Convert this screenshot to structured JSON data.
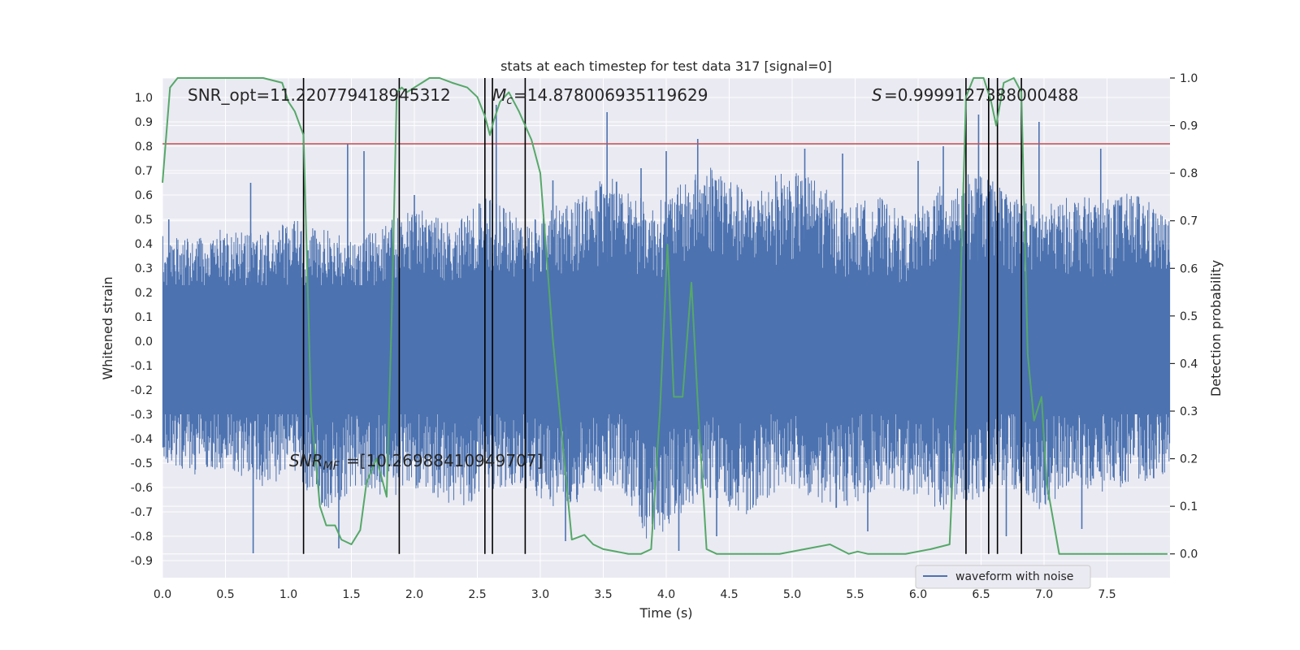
{
  "chart_data": {
    "type": "line",
    "title": "stats at each timestep for test data 317 [signal=0]",
    "xlabel": "Time (s)",
    "ylabel_left": "Whitened strain",
    "ylabel_right": "Detection probability",
    "xlim": [
      0.0,
      8.0
    ],
    "ylim_left": [
      -0.97,
      1.08
    ],
    "ylim_right": [
      -0.05,
      1.0
    ],
    "x_ticks": [
      0.0,
      0.5,
      1.0,
      1.5,
      2.0,
      2.5,
      3.0,
      3.5,
      4.0,
      4.5,
      5.0,
      5.5,
      6.0,
      6.5,
      7.0,
      7.5
    ],
    "x_tick_labels": [
      "0.0",
      "0.5",
      "1.0",
      "1.5",
      "2.0",
      "2.5",
      "3.0",
      "3.5",
      "4.0",
      "4.5",
      "5.0",
      "5.5",
      "6.0",
      "6.5",
      "7.0",
      "7.5"
    ],
    "y_left_ticks": [
      1.0,
      0.9,
      0.8,
      0.7,
      0.6,
      0.5,
      0.4,
      0.3,
      0.2,
      0.1,
      0.0,
      -0.1,
      -0.2,
      -0.3,
      -0.4,
      -0.5,
      -0.6,
      -0.7,
      -0.8,
      -0.9
    ],
    "y_left_tick_labels": [
      "1.0",
      "0.9",
      "0.8",
      "0.7",
      "0.6",
      "0.5",
      "0.4",
      "0.3",
      "0.2",
      "0.1",
      "0.0",
      "-0.1",
      "-0.2",
      "-0.3",
      "-0.4",
      "-0.5",
      "-0.6",
      "-0.7",
      "-0.8",
      "-0.9"
    ],
    "y_right_ticks": [
      1.0,
      0.9,
      0.8,
      0.7,
      0.6,
      0.5,
      0.4,
      0.3,
      0.2,
      0.1,
      0.0
    ],
    "y_right_tick_labels": [
      "1.0",
      "0.9",
      "0.8",
      "0.7",
      "0.6",
      "0.5",
      "0.4",
      "0.3",
      "0.2",
      "0.1",
      "0.0"
    ],
    "grid": true,
    "legend": {
      "label": "waveform with noise",
      "location": "lower-right"
    },
    "annotations": {
      "snr_opt": "SNR_opt=11.220779418945312",
      "mc": "=14.878006935119629",
      "s_stat": "=0.9999127388000488",
      "snr_mf": "=[10.26988410949707]"
    },
    "threshold_level": 0.81,
    "detection_marker_times": [
      1.12,
      1.88,
      2.56,
      2.62,
      2.88,
      6.38,
      6.56,
      6.63,
      6.82
    ],
    "waveform_with_noise": {
      "description_envelope_upper": [
        0.45,
        0.42,
        0.48,
        0.44,
        0.5,
        0.46,
        0.41,
        0.5,
        0.55,
        0.48,
        0.6,
        0.5,
        0.55,
        0.62,
        0.7,
        0.55,
        0.65,
        0.75,
        0.6,
        0.7,
        0.68,
        0.55,
        0.6,
        0.5,
        0.65,
        0.7,
        0.62,
        0.55,
        0.6,
        0.58,
        0.62,
        0.5
      ],
      "description_envelope_lower": [
        -0.5,
        -0.55,
        -0.52,
        -0.6,
        -0.55,
        -0.7,
        -0.6,
        -0.65,
        -0.6,
        -0.7,
        -0.62,
        -0.6,
        -0.7,
        -0.65,
        -0.6,
        -0.85,
        -0.7,
        -0.65,
        -0.72,
        -0.6,
        -0.65,
        -0.7,
        -0.6,
        -0.62,
        -0.7,
        -0.65,
        -0.6,
        -0.7,
        -0.6,
        -0.62,
        -0.58,
        -0.55
      ],
      "spikes": [
        {
          "t": 0.05,
          "v": 0.5
        },
        {
          "t": 0.7,
          "v": 0.65
        },
        {
          "t": 1.47,
          "v": 0.81
        },
        {
          "t": 1.6,
          "v": 0.78
        },
        {
          "t": 2.0,
          "v": 0.6
        },
        {
          "t": 2.65,
          "v": 0.97
        },
        {
          "t": 3.1,
          "v": 0.66
        },
        {
          "t": 3.53,
          "v": 0.94
        },
        {
          "t": 3.8,
          "v": 0.71
        },
        {
          "t": 4.0,
          "v": 0.78
        },
        {
          "t": 4.25,
          "v": 0.83
        },
        {
          "t": 5.1,
          "v": 0.79
        },
        {
          "t": 5.4,
          "v": 0.77
        },
        {
          "t": 6.0,
          "v": 0.74
        },
        {
          "t": 6.2,
          "v": 0.8
        },
        {
          "t": 6.48,
          "v": 0.93
        },
        {
          "t": 6.96,
          "v": 0.9
        },
        {
          "t": 7.45,
          "v": 0.79
        },
        {
          "t": 0.72,
          "v": -0.87
        },
        {
          "t": 1.4,
          "v": -0.85
        },
        {
          "t": 3.2,
          "v": -0.82
        },
        {
          "t": 4.1,
          "v": -0.86
        },
        {
          "t": 4.4,
          "v": -0.8
        },
        {
          "t": 5.6,
          "v": -0.78
        },
        {
          "t": 6.7,
          "v": -0.8
        },
        {
          "t": 7.3,
          "v": -0.77
        }
      ]
    },
    "detection_probability": {
      "x": [
        0.0,
        0.06,
        0.12,
        0.2,
        0.4,
        0.6,
        0.8,
        0.95,
        1.0,
        1.05,
        1.12,
        1.18,
        1.25,
        1.3,
        1.37,
        1.42,
        1.5,
        1.57,
        1.62,
        1.7,
        1.78,
        1.82,
        1.86,
        1.9,
        1.94,
        2.0,
        2.06,
        2.12,
        2.2,
        2.3,
        2.42,
        2.5,
        2.56,
        2.6,
        2.63,
        2.68,
        2.75,
        2.83,
        2.93,
        3.0,
        3.1,
        3.25,
        3.35,
        3.42,
        3.5,
        3.6,
        3.7,
        3.8,
        3.88,
        3.95,
        4.01,
        4.06,
        4.13,
        4.2,
        4.25,
        4.32,
        4.4,
        4.5,
        4.7,
        4.9,
        5.1,
        5.3,
        5.45,
        5.52,
        5.6,
        5.7,
        5.9,
        6.1,
        6.25,
        6.33,
        6.38,
        6.44,
        6.52,
        6.58,
        6.62,
        6.68,
        6.76,
        6.82,
        6.87,
        6.92,
        6.98,
        7.02,
        7.08,
        7.12,
        7.2,
        7.4,
        7.6,
        7.8,
        7.98
      ],
      "y": [
        0.78,
        0.98,
        1.0,
        1.0,
        1.0,
        1.0,
        1.0,
        0.99,
        0.95,
        0.93,
        0.88,
        0.3,
        0.1,
        0.06,
        0.06,
        0.03,
        0.02,
        0.05,
        0.15,
        0.2,
        0.12,
        0.5,
        0.97,
        0.98,
        0.97,
        0.98,
        0.99,
        1.0,
        1.0,
        0.99,
        0.98,
        0.96,
        0.92,
        0.88,
        0.91,
        0.95,
        0.97,
        0.93,
        0.87,
        0.8,
        0.45,
        0.03,
        0.04,
        0.02,
        0.01,
        0.005,
        0.0,
        0.0,
        0.01,
        0.3,
        0.65,
        0.33,
        0.33,
        0.57,
        0.32,
        0.01,
        0.0,
        0.0,
        0.0,
        0.0,
        0.01,
        0.02,
        0.0,
        0.005,
        0.0,
        0.0,
        0.0,
        0.01,
        0.02,
        0.5,
        0.96,
        1.0,
        1.0,
        0.95,
        0.9,
        0.99,
        1.0,
        0.97,
        0.42,
        0.28,
        0.33,
        0.15,
        0.06,
        0.0,
        0.0,
        0.0,
        0.0,
        0.0,
        0.0
      ]
    }
  }
}
